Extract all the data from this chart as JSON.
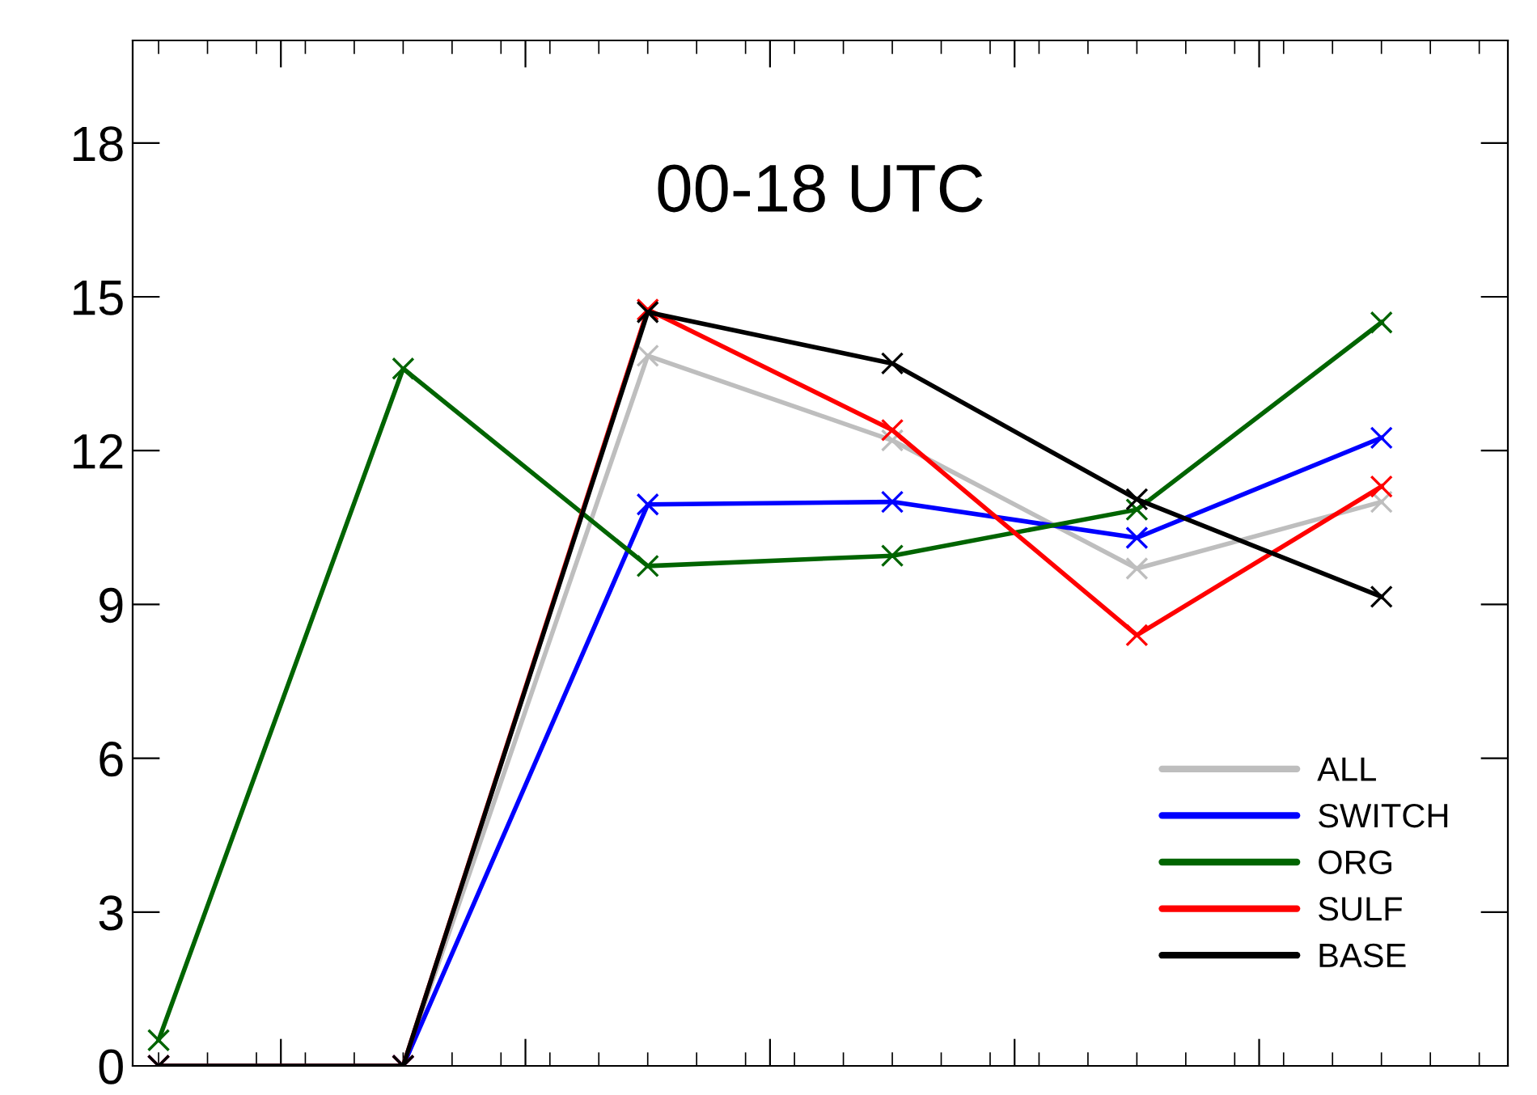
{
  "chart_data": {
    "type": "line",
    "title": "00-18 UTC",
    "categories": [
      null,
      null,
      null,
      null,
      null,
      null
    ],
    "series": [
      {
        "name": "ALL",
        "color": "#bebebe",
        "values": [
          0,
          0,
          13.85,
          12.2,
          9.7,
          11.0
        ]
      },
      {
        "name": "SWITCH",
        "color": "#0000ff",
        "values": [
          0,
          0,
          10.95,
          11.0,
          10.3,
          12.25
        ]
      },
      {
        "name": "ORG",
        "color": "#006400",
        "values": [
          0.5,
          13.6,
          9.75,
          9.95,
          10.85,
          14.5
        ]
      },
      {
        "name": "SULF",
        "color": "#ff0000",
        "values": [
          0,
          0,
          14.75,
          12.4,
          8.4,
          11.3
        ]
      },
      {
        "name": "BASE",
        "color": "#000000",
        "values": [
          0,
          0,
          14.7,
          13.7,
          11.05,
          9.15
        ]
      }
    ],
    "ylim": [
      0,
      20
    ],
    "yticks": [
      0,
      3,
      6,
      9,
      12,
      15,
      18
    ],
    "tick_labels": "y",
    "grid": false,
    "legend": "bottom right",
    "marker": "cross",
    "line_style": "solid"
  }
}
